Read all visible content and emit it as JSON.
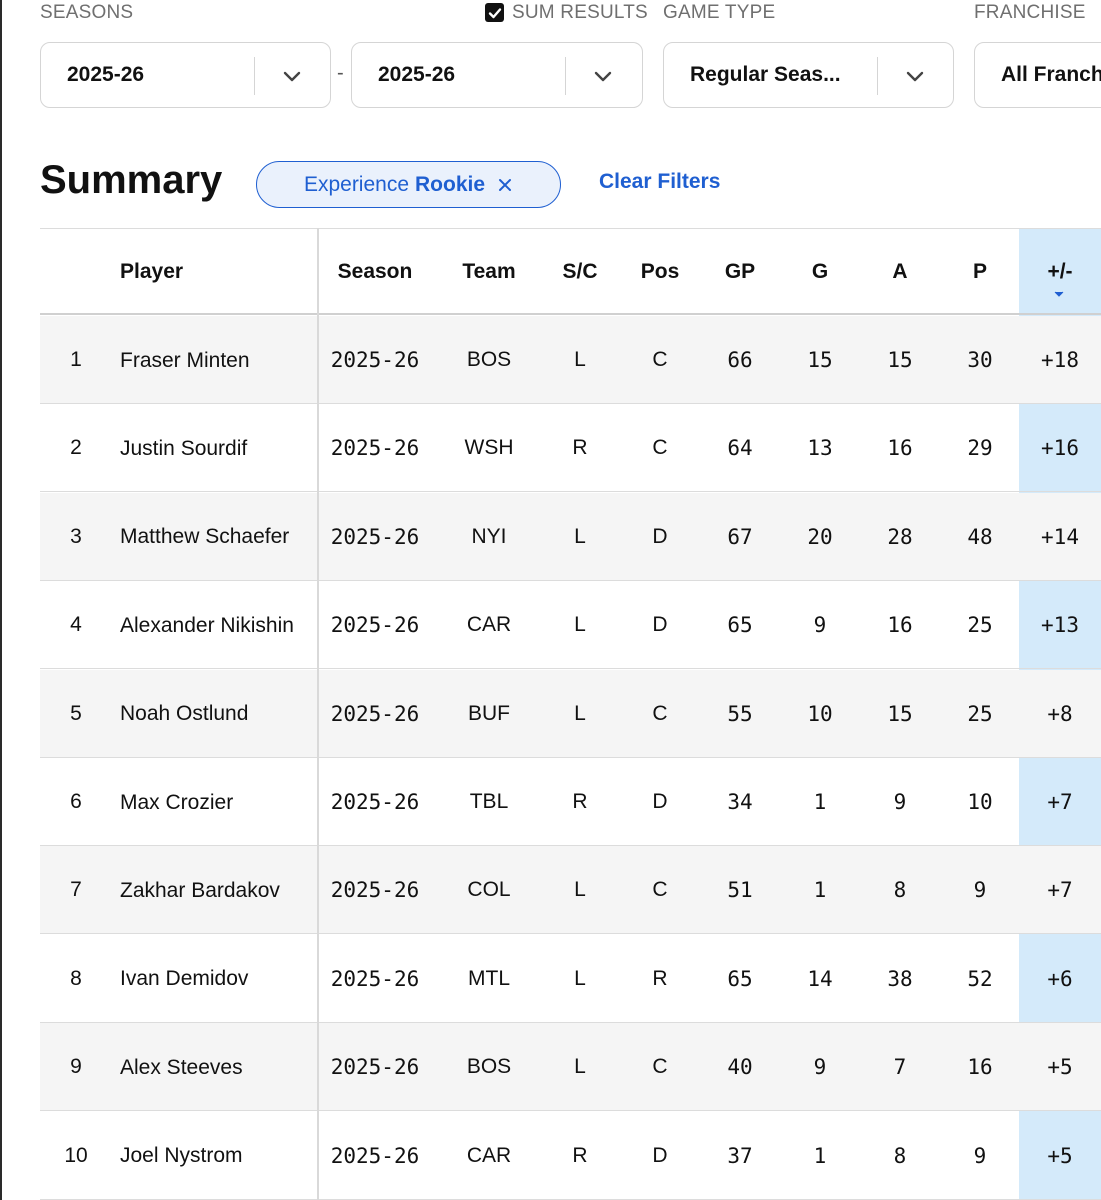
{
  "filters": {
    "seasons_label": "SEASONS",
    "sum_results_label": "SUM RESULTS",
    "sum_results_checked": true,
    "game_type_label": "GAME TYPE",
    "franchise_label": "FRANCHISE",
    "season_from": "2025-26",
    "season_to": "2025-26",
    "range_separator": "-",
    "game_type": "Regular Seas...",
    "franchise": "All Franch"
  },
  "summary": {
    "title": "Summary",
    "chip_prefix": "Experience",
    "chip_value": "Rookie",
    "clear_filters": "Clear Filters"
  },
  "table": {
    "headers": [
      "",
      "Player",
      "Season",
      "Team",
      "S/C",
      "Pos",
      "GP",
      "G",
      "A",
      "P",
      "+/-"
    ],
    "sorted_column": "+/-",
    "rows": [
      {
        "rank": "1",
        "player": "Fraser Minten",
        "season": "2025-26",
        "team": "BOS",
        "sc": "L",
        "pos": "C",
        "gp": "66",
        "g": "15",
        "a": "15",
        "p": "30",
        "pm": "+18"
      },
      {
        "rank": "2",
        "player": "Justin Sourdif",
        "season": "2025-26",
        "team": "WSH",
        "sc": "R",
        "pos": "C",
        "gp": "64",
        "g": "13",
        "a": "16",
        "p": "29",
        "pm": "+16"
      },
      {
        "rank": "3",
        "player": "Matthew Schaefer",
        "season": "2025-26",
        "team": "NYI",
        "sc": "L",
        "pos": "D",
        "gp": "67",
        "g": "20",
        "a": "28",
        "p": "48",
        "pm": "+14"
      },
      {
        "rank": "4",
        "player": "Alexander Nikishin",
        "season": "2025-26",
        "team": "CAR",
        "sc": "L",
        "pos": "D",
        "gp": "65",
        "g": "9",
        "a": "16",
        "p": "25",
        "pm": "+13"
      },
      {
        "rank": "5",
        "player": "Noah Ostlund",
        "season": "2025-26",
        "team": "BUF",
        "sc": "L",
        "pos": "C",
        "gp": "55",
        "g": "10",
        "a": "15",
        "p": "25",
        "pm": "+8"
      },
      {
        "rank": "6",
        "player": "Max Crozier",
        "season": "2025-26",
        "team": "TBL",
        "sc": "R",
        "pos": "D",
        "gp": "34",
        "g": "1",
        "a": "9",
        "p": "10",
        "pm": "+7"
      },
      {
        "rank": "7",
        "player": "Zakhar Bardakov",
        "season": "2025-26",
        "team": "COL",
        "sc": "L",
        "pos": "C",
        "gp": "51",
        "g": "1",
        "a": "8",
        "p": "9",
        "pm": "+7"
      },
      {
        "rank": "8",
        "player": "Ivan Demidov",
        "season": "2025-26",
        "team": "MTL",
        "sc": "L",
        "pos": "R",
        "gp": "65",
        "g": "14",
        "a": "38",
        "p": "52",
        "pm": "+6"
      },
      {
        "rank": "9",
        "player": "Alex Steeves",
        "season": "2025-26",
        "team": "BOS",
        "sc": "L",
        "pos": "C",
        "gp": "40",
        "g": "9",
        "a": "7",
        "p": "16",
        "pm": "+5"
      },
      {
        "rank": "10",
        "player": "Joel Nystrom",
        "season": "2025-26",
        "team": "CAR",
        "sc": "R",
        "pos": "D",
        "gp": "37",
        "g": "1",
        "a": "8",
        "p": "9",
        "pm": "+5"
      }
    ]
  },
  "colors": {
    "accent": "#1f5fd1",
    "chip_bg": "#eaf1fc",
    "sorted_column_bg": "#d4eafa",
    "row_alt_bg": "#f5f5f5"
  },
  "icons": [
    "checkbox-checked-icon",
    "chevron-down-icon",
    "close-icon",
    "sort-desc-icon"
  ]
}
